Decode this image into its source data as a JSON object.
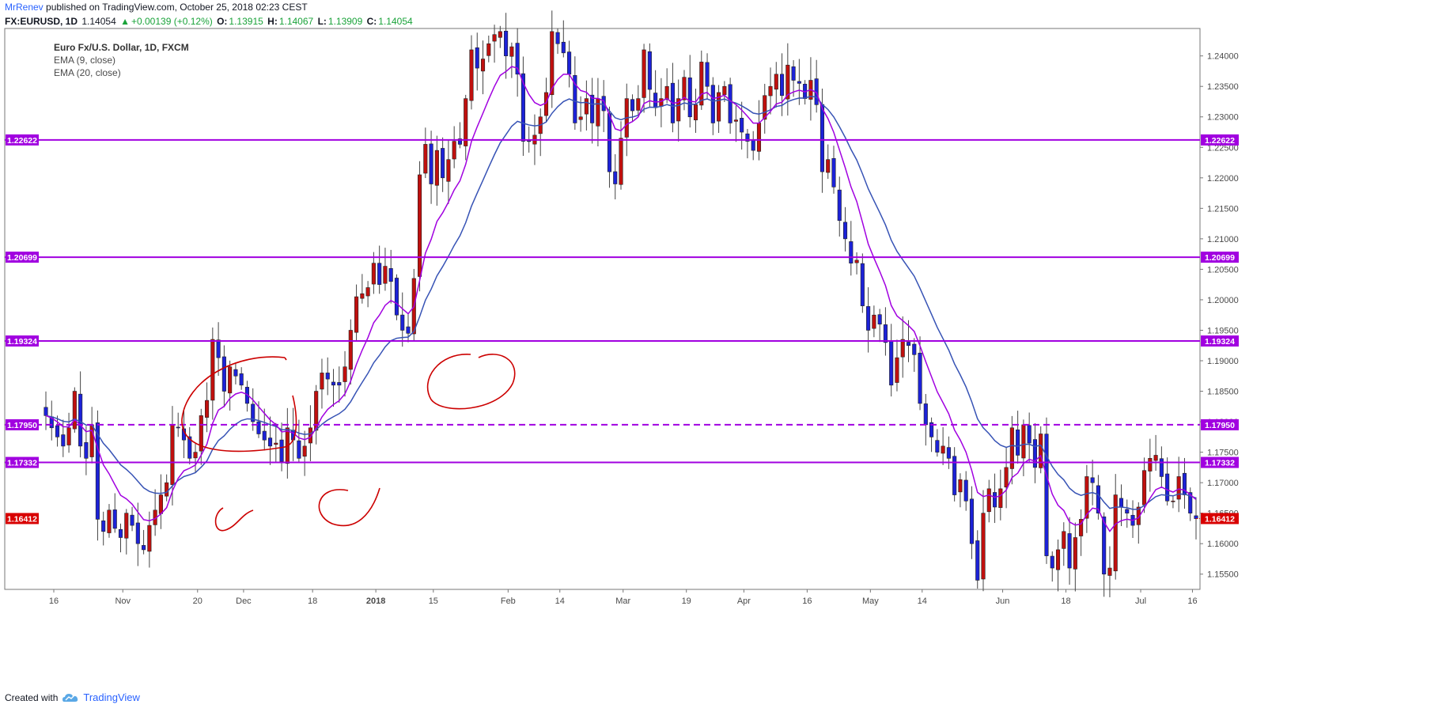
{
  "header": {
    "author": "MrRenev",
    "published": "published on TradingView.com, October 25, 2018 02:23 CEST",
    "symbol": "FX:EURUSD, 1D",
    "last_price": "1.14054",
    "change": "+0.00139 (+0.12%)",
    "o_label": "O:",
    "o_value": "1.13915",
    "h_label": "H:",
    "h_value": "1.14067",
    "l_label": "L:",
    "l_value": "1.13909",
    "c_label": "C:",
    "c_value": "1.14054",
    "up_arrow": "▲"
  },
  "legend": {
    "title": "Euro Fx/U.S. Dollar, 1D, FXCM",
    "ema1": "EMA (9, close)",
    "ema2": "EMA (20, close)"
  },
  "footer": {
    "created_with": "Created with",
    "brand": "TradingView"
  },
  "colors": {
    "bull": "#c0100e",
    "bear": "#1c22d8",
    "ema9": "#a100e0",
    "ema20": "#3753b5",
    "level": "#a100e0",
    "level_label_bg": "#a100e0",
    "last_label_bg": "#d80000",
    "annotation": "#cc0000"
  },
  "chart_data": {
    "type": "candlestick",
    "ylim": [
      1.1525,
      1.2445
    ],
    "y_ticks": [
      "1.24000",
      "1.23500",
      "1.23000",
      "1.22500",
      "1.22000",
      "1.21500",
      "1.21000",
      "1.20500",
      "1.20000",
      "1.19500",
      "1.19000",
      "1.18500",
      "1.18000",
      "1.17500",
      "1.17000",
      "1.16500",
      "1.16000",
      "1.15500"
    ],
    "x_ticks": [
      {
        "label": "16",
        "i": 0
      },
      {
        "label": "Nov",
        "i": 12
      },
      {
        "label": "20",
        "i": 25
      },
      {
        "label": "Dec",
        "i": 33
      },
      {
        "label": "18",
        "i": 45
      },
      {
        "label": "2018",
        "i": 56
      },
      {
        "label": "15",
        "i": 66
      },
      {
        "label": "Feb",
        "i": 79
      },
      {
        "label": "14",
        "i": 88
      },
      {
        "label": "Mar",
        "i": 99
      },
      {
        "label": "19",
        "i": 110
      },
      {
        "label": "Apr",
        "i": 120
      },
      {
        "label": "16",
        "i": 131
      },
      {
        "label": "May",
        "i": 142
      },
      {
        "label": "14",
        "i": 151
      },
      {
        "label": "Jun",
        "i": 165
      },
      {
        "label": "18",
        "i": 176
      },
      {
        "label": "Jul",
        "i": 189
      },
      {
        "label": "16",
        "i": 198
      }
    ],
    "levels": [
      {
        "value": 1.22622,
        "label": "1.22622",
        "style": "solid"
      },
      {
        "value": 1.20699,
        "label": "1.20699",
        "style": "solid"
      },
      {
        "value": 1.19324,
        "label": "1.19324",
        "style": "solid"
      },
      {
        "value": 1.1795,
        "label": "1.17950",
        "style": "dashed"
      },
      {
        "value": 1.17332,
        "label": "1.17332",
        "style": "solid"
      }
    ],
    "last_price": {
      "value": 1.16412,
      "label": "1.16412"
    },
    "closes": [
      1.181,
      1.179,
      1.1775,
      1.176,
      1.179,
      1.185,
      1.176,
      1.174,
      1.1795,
      1.164,
      1.162,
      1.1655,
      1.1625,
      1.161,
      1.165,
      1.163,
      1.16,
      1.159,
      1.163,
      1.1655,
      1.168,
      1.17,
      1.1795,
      1.179,
      1.177,
      1.174,
      1.175,
      1.181,
      1.1835,
      1.1935,
      1.1905,
      1.185,
      1.189,
      1.1875,
      1.186,
      1.183,
      1.18,
      1.178,
      1.177,
      1.176,
      1.1765,
      1.1735,
      1.179,
      1.177,
      1.174,
      1.176,
      1.179,
      1.185,
      1.188,
      1.187,
      1.186,
      1.186,
      1.189,
      1.195,
      1.2005,
      1.201,
      1.202,
      1.206,
      1.2025,
      1.2055,
      1.203,
      1.1975,
      1.195,
      1.1945,
      1.2035,
      1.2205,
      1.2255,
      1.219,
      1.2245,
      1.22,
      1.223,
      1.226,
      1.2255,
      1.233,
      1.241,
      1.238,
      1.2395,
      1.242,
      1.2435,
      1.244,
      1.24,
      1.2415,
      1.237,
      1.226,
      1.226,
      1.227,
      1.23,
      1.234,
      1.244,
      1.242,
      1.2405,
      1.237,
      1.229,
      1.23,
      1.233,
      1.229,
      1.233,
      1.231,
      1.221,
      1.219,
      1.2265,
      1.233,
      1.231,
      1.233,
      1.241,
      1.2345,
      1.2315,
      1.233,
      1.235,
      1.229,
      1.233,
      1.2365,
      1.23,
      1.232,
      1.239,
      1.235,
      1.229,
      1.234,
      1.235,
      1.229,
      1.2295,
      1.2275,
      1.226,
      1.2245,
      1.229,
      1.2335,
      1.235,
      1.237,
      1.2335,
      1.2385,
      1.236,
      1.2355,
      1.233,
      1.236,
      1.232,
      1.221,
      1.223,
      1.2185,
      1.213,
      1.21,
      1.206,
      1.2065,
      1.199,
      1.195,
      1.1975,
      1.196,
      1.193,
      1.186,
      1.1905,
      1.1935,
      1.1925,
      1.191,
      1.183,
      1.1795,
      1.1775,
      1.175,
      1.176,
      1.174,
      1.168,
      1.1705,
      1.167,
      1.16,
      1.154,
      1.165,
      1.169,
      1.166,
      1.169,
      1.1725,
      1.179,
      1.1745,
      1.1795,
      1.1765,
      1.1725,
      1.178,
      1.158,
      1.156,
      1.159,
      1.162,
      1.156,
      1.161,
      1.164,
      1.171,
      1.17,
      1.165,
      1.155,
      1.156,
      1.168,
      1.166,
      1.165,
      1.163,
      1.166,
      1.172,
      1.174,
      1.1745,
      1.171,
      1.167,
      1.167,
      1.171,
      1.168,
      1.165,
      1.1641
    ]
  }
}
